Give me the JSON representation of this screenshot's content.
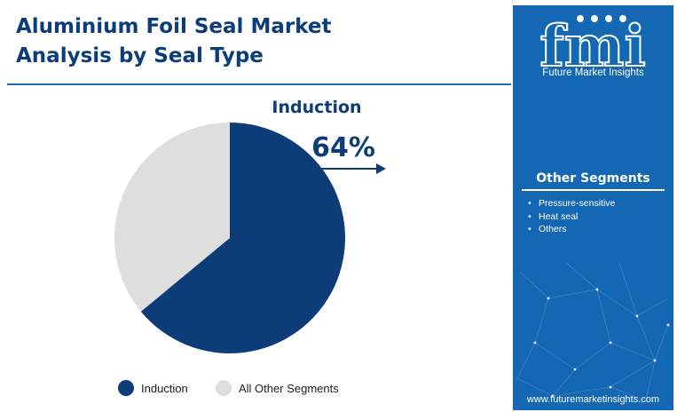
{
  "title_line1": "Aluminium Foil Seal Market",
  "title_line2": "Analysis  by  Seal Type",
  "chart_data": {
    "type": "pie",
    "categories": [
      "Induction",
      "All Other Segments"
    ],
    "values": [
      64,
      36
    ],
    "colors": [
      "#0d3d78",
      "#dedede"
    ],
    "annotation": {
      "segment": "Induction",
      "value_label": "64%"
    }
  },
  "legend": [
    {
      "label": "Induction",
      "color": "#0d3d78"
    },
    {
      "label": "All Other Segments",
      "color": "#dedede"
    }
  ],
  "sidebar": {
    "logo_letters": "fmi",
    "logo_name": "Future Market Insights",
    "segments_heading": "Other Segments",
    "segments": [
      "Pressure-sensitive",
      "Heat seal",
      "Others"
    ],
    "url": "www.futuremarketinsights.com",
    "background": "#1467b3"
  }
}
